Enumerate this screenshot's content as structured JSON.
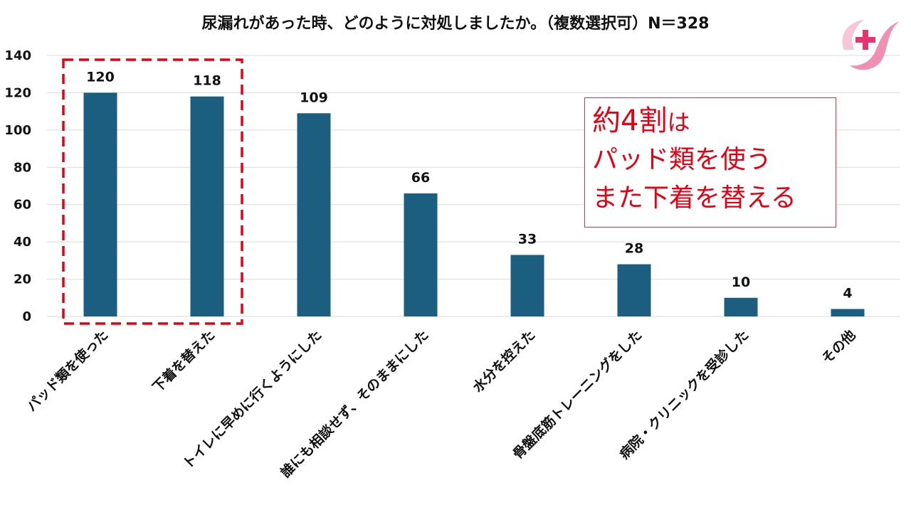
{
  "chart_data": {
    "type": "bar",
    "title": "尿漏れがあった時、どのように対処しましたか。（複数選択可）N＝328",
    "categories": [
      "パッド類を使った",
      "下着を替えた",
      "トイレに早めに行くようにした",
      "誰にも相談せず、そのままにした",
      "水分を控えた",
      "骨盤底筋トレーニングをした",
      "病院・クリニックを受診した",
      "その他"
    ],
    "values": [
      120,
      118,
      109,
      66,
      33,
      28,
      10,
      4
    ],
    "ylim": [
      0,
      140
    ],
    "yticks": [
      0,
      20,
      40,
      60,
      80,
      100,
      120,
      140
    ],
    "xlabel": "",
    "ylabel": "",
    "grid": true,
    "bar_color": "#1b5e80",
    "highlight_color": "#e60012"
  },
  "callout": {
    "line1_big": "約4割",
    "line1_small": "は",
    "line2": "パッド類を使う",
    "line3": "また下着を替える",
    "color": "#e60012"
  },
  "logo": {
    "icon": "pink-cross-logo-icon"
  }
}
